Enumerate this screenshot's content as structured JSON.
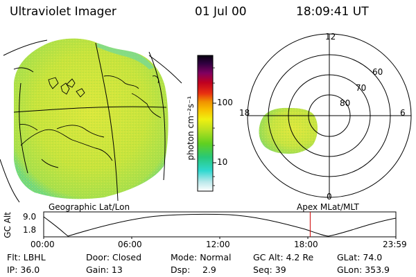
{
  "header": {
    "title": "Ultraviolet Imager",
    "date": "01 Jul 00",
    "time": "18:09:41 UT"
  },
  "colorbar": {
    "label": "photon cm⁻²s⁻¹",
    "ticks": [
      "100",
      "10"
    ]
  },
  "left_panel": {
    "caption": "Geographic Lat/Lon"
  },
  "right_panel": {
    "caption": "Apex MLat/MLT",
    "mlt_labels": [
      "12",
      "18",
      "6",
      "0"
    ],
    "lat_labels": [
      "60",
      "70",
      "80"
    ]
  },
  "altitude_plot": {
    "ylabel": "GC Alt",
    "y_ticks": [
      "9.0",
      "1.8"
    ],
    "x_ticks": [
      "00:00",
      "06:00",
      "12:00",
      "18:00",
      "23:59"
    ],
    "current_time_hours": 18.16,
    "marker_color": "#cc0000"
  },
  "footer": {
    "row1": {
      "filter": "Flt: LBHL",
      "door": "Door: Closed",
      "mode": "Mode: Normal",
      "gc_alt": "GC Alt: 4.2 Re",
      "glat": "GLat: 74.0"
    },
    "row2": {
      "ip": "IP: 36.0",
      "gain": "Gain: 13",
      "dsp": "Dsp:",
      "dsp_value": "2.9",
      "seq": "Seq: 39",
      "glon": "GLon: 353.9"
    }
  }
}
